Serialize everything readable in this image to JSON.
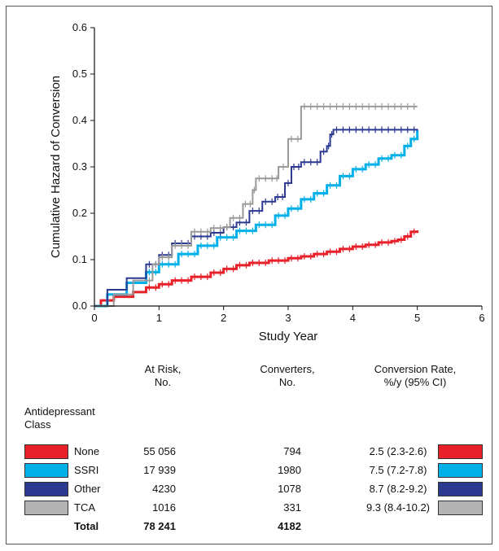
{
  "chart_data": {
    "type": "line",
    "xlabel": "Study Year",
    "ylabel": "Cumulative Hazard of Conversion",
    "xlim": [
      0,
      6
    ],
    "ylim": [
      0,
      0.6
    ],
    "x_ticks": [
      "0",
      "1",
      "2",
      "3",
      "4",
      "5",
      "6"
    ],
    "y_ticks": [
      "0.0",
      "0.1",
      "0.2",
      "0.3",
      "0.4",
      "0.5",
      "0.6"
    ],
    "grid": false,
    "series": [
      {
        "name": "None",
        "color": "#e8202a",
        "points": [
          [
            0,
            0
          ],
          [
            0.1,
            0.012
          ],
          [
            0.3,
            0.02
          ],
          [
            0.6,
            0.03
          ],
          [
            0.8,
            0.04
          ],
          [
            1.0,
            0.047
          ],
          [
            1.2,
            0.055
          ],
          [
            1.5,
            0.063
          ],
          [
            1.8,
            0.072
          ],
          [
            2.0,
            0.08
          ],
          [
            2.2,
            0.088
          ],
          [
            2.4,
            0.093
          ],
          [
            2.7,
            0.098
          ],
          [
            3.0,
            0.103
          ],
          [
            3.2,
            0.107
          ],
          [
            3.4,
            0.112
          ],
          [
            3.6,
            0.117
          ],
          [
            3.8,
            0.123
          ],
          [
            4.0,
            0.128
          ],
          [
            4.2,
            0.132
          ],
          [
            4.4,
            0.137
          ],
          [
            4.6,
            0.14
          ],
          [
            4.7,
            0.143
          ],
          [
            4.8,
            0.15
          ],
          [
            4.9,
            0.16
          ],
          [
            5.0,
            0.163
          ]
        ]
      },
      {
        "name": "SSRI",
        "color": "#00b0e8",
        "points": [
          [
            0,
            0
          ],
          [
            0.2,
            0.025
          ],
          [
            0.5,
            0.05
          ],
          [
            0.8,
            0.073
          ],
          [
            1.0,
            0.09
          ],
          [
            1.3,
            0.112
          ],
          [
            1.6,
            0.13
          ],
          [
            1.9,
            0.148
          ],
          [
            2.2,
            0.162
          ],
          [
            2.5,
            0.175
          ],
          [
            2.8,
            0.195
          ],
          [
            3.0,
            0.21
          ],
          [
            3.2,
            0.23
          ],
          [
            3.4,
            0.243
          ],
          [
            3.6,
            0.26
          ],
          [
            3.8,
            0.28
          ],
          [
            4.0,
            0.295
          ],
          [
            4.2,
            0.305
          ],
          [
            4.4,
            0.318
          ],
          [
            4.6,
            0.325
          ],
          [
            4.8,
            0.345
          ],
          [
            4.9,
            0.36
          ],
          [
            5.0,
            0.378
          ]
        ]
      },
      {
        "name": "Other",
        "color": "#2b3990",
        "points": [
          [
            0,
            0
          ],
          [
            0.2,
            0.035
          ],
          [
            0.5,
            0.06
          ],
          [
            0.8,
            0.09
          ],
          [
            1.0,
            0.11
          ],
          [
            1.2,
            0.135
          ],
          [
            1.5,
            0.15
          ],
          [
            1.8,
            0.158
          ],
          [
            2.0,
            0.17
          ],
          [
            2.2,
            0.18
          ],
          [
            2.4,
            0.205
          ],
          [
            2.6,
            0.225
          ],
          [
            2.8,
            0.235
          ],
          [
            2.95,
            0.265
          ],
          [
            3.05,
            0.3
          ],
          [
            3.2,
            0.31
          ],
          [
            3.4,
            0.31
          ],
          [
            3.5,
            0.333
          ],
          [
            3.6,
            0.345
          ],
          [
            3.65,
            0.37
          ],
          [
            3.7,
            0.38
          ],
          [
            4.0,
            0.38
          ],
          [
            4.5,
            0.38
          ],
          [
            5.0,
            0.378
          ]
        ]
      },
      {
        "name": "TCA",
        "color": "#999999",
        "points": [
          [
            0,
            0
          ],
          [
            0.3,
            0.025
          ],
          [
            0.6,
            0.055
          ],
          [
            0.9,
            0.09
          ],
          [
            1.0,
            0.105
          ],
          [
            1.2,
            0.13
          ],
          [
            1.5,
            0.16
          ],
          [
            1.8,
            0.168
          ],
          [
            2.0,
            0.17
          ],
          [
            2.1,
            0.19
          ],
          [
            2.3,
            0.22
          ],
          [
            2.45,
            0.25
          ],
          [
            2.5,
            0.275
          ],
          [
            2.8,
            0.275
          ],
          [
            2.85,
            0.3
          ],
          [
            3.0,
            0.3
          ],
          [
            3.0,
            0.36
          ],
          [
            3.2,
            0.36
          ],
          [
            3.2,
            0.43
          ],
          [
            4.0,
            0.43
          ],
          [
            5.0,
            0.43
          ]
        ]
      }
    ]
  },
  "table": {
    "class_label_line1": "Antidepressant",
    "class_label_line2": "Class",
    "hdr_risk_line1": "At Risk,",
    "hdr_risk_line2": "No.",
    "hdr_conv_line1": "Converters,",
    "hdr_conv_line2": "No.",
    "hdr_rate_line1": "Conversion Rate,",
    "hdr_rate_line2": "%/y (95% CI)",
    "rows": [
      {
        "label": "None",
        "at_risk": "55 056",
        "converters": "794",
        "rate": "2.5 (2.3-2.6)",
        "color": "#e8202a"
      },
      {
        "label": "SSRI",
        "at_risk": "17 939",
        "converters": "1980",
        "rate": "7.5 (7.2-7.8)",
        "color": "#00b0e8"
      },
      {
        "label": "Other",
        "at_risk": "4230",
        "converters": "1078",
        "rate": "8.7 (8.2-9.2)",
        "color": "#2b3990"
      },
      {
        "label": "TCA",
        "at_risk": "1016",
        "converters": "331",
        "rate": "9.3 (8.4-10.2)",
        "color": "#b3b3b3"
      }
    ],
    "total": {
      "label": "Total",
      "at_risk": "78 241",
      "converters": "4182"
    }
  }
}
